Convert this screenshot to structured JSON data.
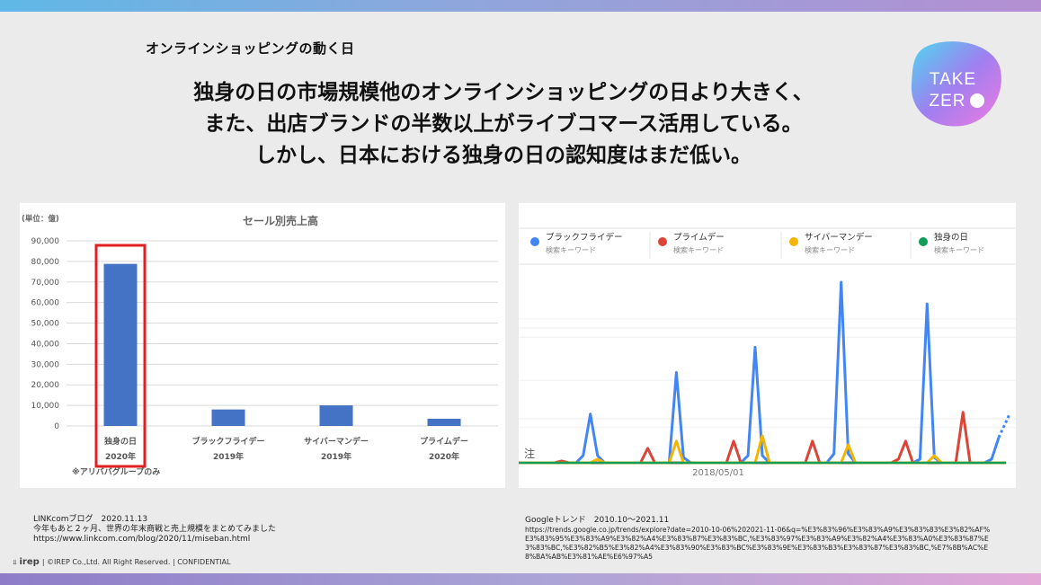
{
  "slide": {
    "section_label": "オンラインショッピングの動く日",
    "headline": [
      "独身の日の市場規模他のオンラインショッピングの日より大きく、",
      "また、出店ブランドの半数以上がライブコマース活用している。",
      "しかし、日本における独身の日の認知度はまだ低い。"
    ],
    "logo_text": [
      "TAKE",
      "ZER"
    ],
    "footer": {
      "brand": "irep",
      "text": "| ©IREP Co.,Ltd. All Right Reserved. | CONFIDENTIAL"
    }
  },
  "colors": {
    "bar": "#4472c4",
    "highlight": "#e02020",
    "black_friday": "#4285f4",
    "prime_day": "#db4437",
    "cyber_monday": "#f4b400",
    "singles_day": "#0f9d58"
  },
  "sources": {
    "left": [
      "LINKcomブログ　2020.11.13",
      "今年もあと２ヶ月、世界の年末商戦と売上規模をまとめてみました",
      "https://www.linkcom.com/blog/2020/11/miseban.html"
    ],
    "right": [
      "Googleトレンド　2010.10～2021.11",
      "https://trends.google.co.jp/trends/explore?date=2010-10-06%202021-11-06&q=%E3%83%96%E3%83%A9%E3%83%83%E3%82%AF%E3%83%95%E3%83%A9%E3%82%A4%E3%83%87%E3%83%BC,%E3%83%97%E3%83%A9%E3%82%A4%E3%83%A0%E3%83%87%E3%83%BC,%E3%82%B5%E3%82%A4%E3%83%90%E3%83%BC%E3%83%9E%E3%83%B3%E3%83%87%E3%83%BC,%E7%8B%AC%E8%BA%AB%E3%81%AE%E6%97%A5"
    ]
  },
  "chart_data": [
    {
      "type": "bar",
      "title": "セール別売上高",
      "unit_label": "(単位：億)",
      "categories": [
        "独身の日",
        "ブラックフライデー",
        "サイバーマンデー",
        "プライムデー"
      ],
      "category_years": [
        "2020年",
        "2019年",
        "2019年",
        "2020年"
      ],
      "values": [
        78800,
        8000,
        10000,
        3500
      ],
      "ylim": [
        0,
        90000
      ],
      "yticks": [
        0,
        10000,
        20000,
        30000,
        40000,
        50000,
        60000,
        70000,
        80000,
        90000
      ],
      "ytick_labels": [
        "0",
        "10,000",
        "20,000",
        "30,000",
        "40,000",
        "50,000",
        "60,000",
        "70,000",
        "80,000",
        "90,000"
      ],
      "highlight_index": 0,
      "note": "※アリババグループのみ",
      "grid": true
    },
    {
      "type": "line",
      "legend_position": "top",
      "x_tick_label": "2018/05/01",
      "annotation": "注",
      "series": [
        {
          "name": "ブラックフライデー",
          "sub": "検索キーワード",
          "color_key": "black_friday",
          "points": [
            [
              0,
              0
            ],
            [
              6,
              0
            ],
            [
              8,
              0
            ],
            [
              9,
              4
            ],
            [
              10,
              27
            ],
            [
              11,
              4
            ],
            [
              12,
              0
            ],
            [
              14,
              0
            ],
            [
              20,
              0
            ],
            [
              21,
              0
            ],
            [
              22,
              50
            ],
            [
              23,
              3
            ],
            [
              24,
              0
            ],
            [
              31,
              0
            ],
            [
              32,
              4
            ],
            [
              33,
              64
            ],
            [
              34,
              4
            ],
            [
              35,
              0
            ],
            [
              43,
              0
            ],
            [
              44,
              5
            ],
            [
              45,
              100
            ],
            [
              46,
              5
            ],
            [
              47,
              0
            ],
            [
              55,
              0
            ],
            [
              56,
              2
            ],
            [
              57,
              88
            ],
            [
              58,
              3
            ],
            [
              59,
              0
            ],
            [
              65,
              0
            ],
            [
              66,
              2
            ],
            [
              67,
              14
            ],
            [
              68,
              8
            ]
          ]
        },
        {
          "name": "プライムデー",
          "sub": "検索キーワード",
          "color_key": "prime_day",
          "points": [
            [
              0,
              0
            ],
            [
              5,
              0
            ],
            [
              6,
              1
            ],
            [
              7,
              0
            ],
            [
              17,
              0
            ],
            [
              18,
              8
            ],
            [
              19,
              0
            ],
            [
              29,
              0
            ],
            [
              30,
              12
            ],
            [
              31,
              0
            ],
            [
              40,
              0
            ],
            [
              41,
              12
            ],
            [
              42,
              0
            ],
            [
              52,
              0
            ],
            [
              53,
              2
            ],
            [
              54,
              12
            ],
            [
              55,
              0
            ],
            [
              61,
              0
            ],
            [
              62,
              28
            ],
            [
              63,
              0
            ],
            [
              68,
              0
            ]
          ]
        },
        {
          "name": "サイバーマンデー",
          "sub": "検索キーワード",
          "color_key": "cyber_monday",
          "points": [
            [
              0,
              0
            ],
            [
              10,
              0
            ],
            [
              11,
              2
            ],
            [
              12,
              0
            ],
            [
              21,
              0
            ],
            [
              22,
              12
            ],
            [
              23,
              0
            ],
            [
              33,
              0
            ],
            [
              34,
              15
            ],
            [
              35,
              0
            ],
            [
              45,
              0
            ],
            [
              46,
              10
            ],
            [
              47,
              0
            ],
            [
              57,
              0
            ],
            [
              58,
              4
            ],
            [
              59,
              0
            ],
            [
              68,
              0
            ]
          ]
        },
        {
          "name": "独身の日",
          "sub": "検索キーワード",
          "color_key": "singles_day",
          "points": [
            [
              0,
              0
            ],
            [
              68,
              0
            ]
          ]
        }
      ],
      "ylim": [
        0,
        100
      ]
    }
  ]
}
